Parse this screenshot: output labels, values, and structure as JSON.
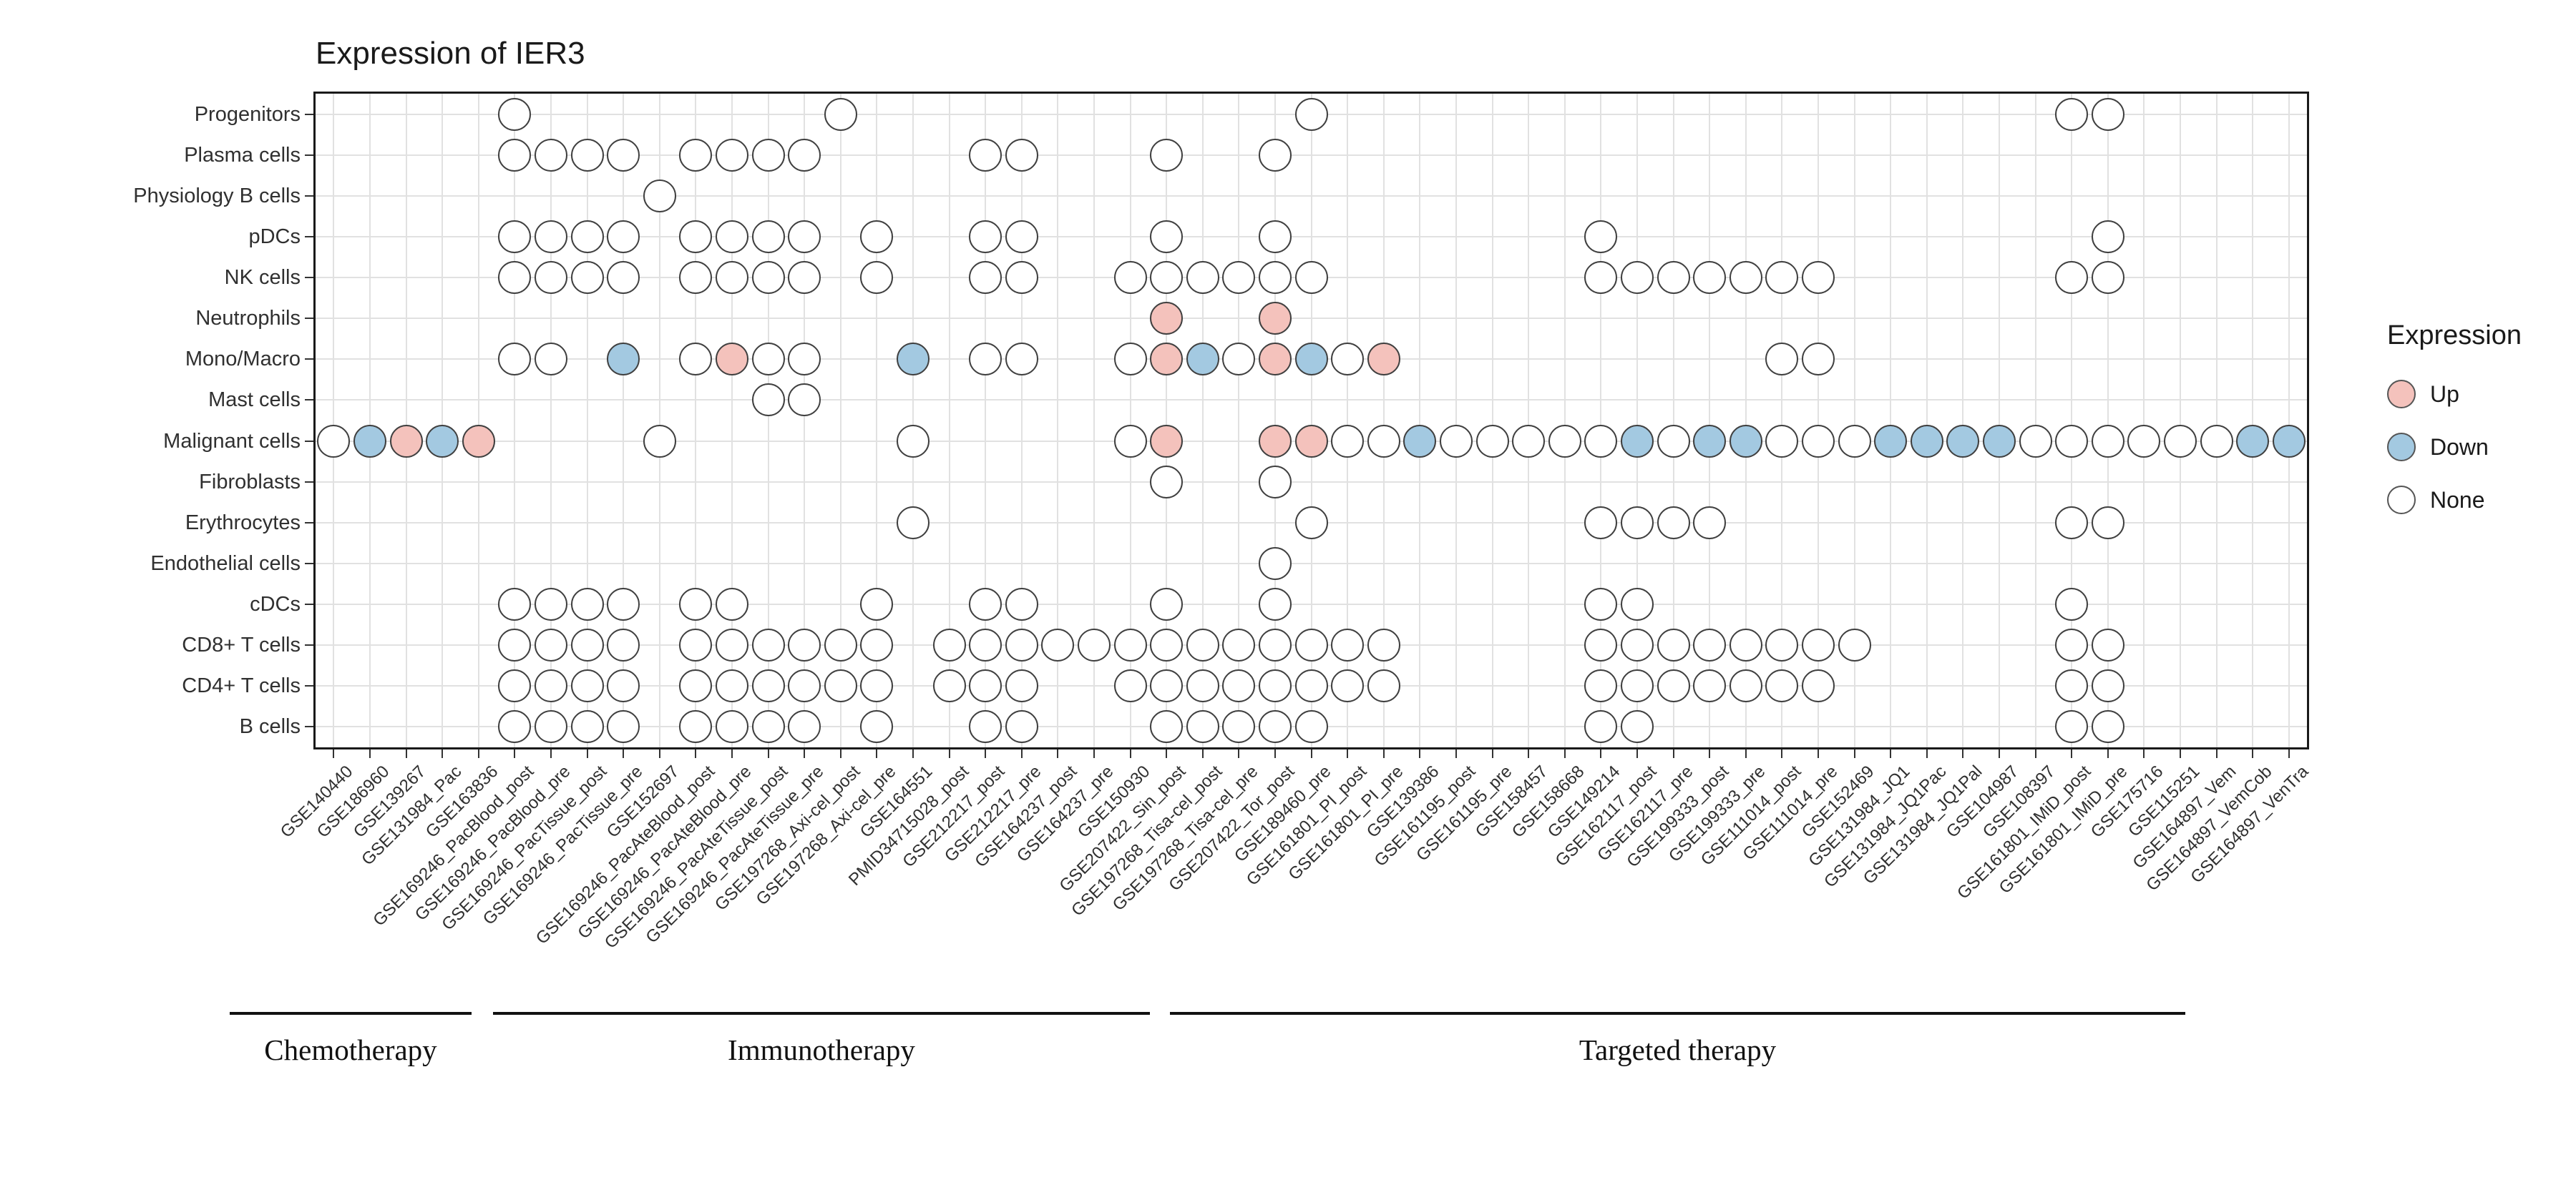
{
  "colors": {
    "up": "#F4C2BC",
    "down": "#A3C9E1",
    "none": "#FFFFFF",
    "dot_stroke": "#404040",
    "grid": "#E1E1E1",
    "axis": "#1A1A1A"
  },
  "chart_data": {
    "type": "heatmap",
    "title": "Expression of IER3",
    "xlabel": "",
    "ylabel": "",
    "grid": true,
    "legend_position": "right",
    "value_domain": [
      "up",
      "down",
      "none"
    ],
    "legend": {
      "title": "Expression",
      "items": [
        {
          "label": "Up",
          "state": "up"
        },
        {
          "label": "Down",
          "state": "down"
        },
        {
          "label": "None",
          "state": "none"
        }
      ]
    },
    "rows": [
      "Progenitors",
      "Plasma cells",
      "Physiology B cells",
      "pDCs",
      "NK cells",
      "Neutrophils",
      "Mono/Macro",
      "Mast cells",
      "Malignant cells",
      "Fibroblasts",
      "Erythrocytes",
      "Endothelial cells",
      "cDCs",
      "CD8+ T cells",
      "CD4+ T cells",
      "B cells"
    ],
    "columns": [
      "GSE140440",
      "GSE186960",
      "GSE139267",
      "GSE131984_Pac",
      "GSE163836",
      "GSE169246_PacBlood_post",
      "GSE169246_PacBlood_pre",
      "GSE169246_PacTissue_post",
      "GSE169246_PacTissue_pre",
      "GSE152697",
      "GSE169246_PacAteBlood_post",
      "GSE169246_PacAteBlood_pre",
      "GSE169246_PacAteTissue_post",
      "GSE169246_PacAteTissue_pre",
      "GSE197268_Axi-cel_post",
      "GSE197268_Axi-cel_pre",
      "GSE164551",
      "PMID34715028_post",
      "GSE212217_post",
      "GSE212217_pre",
      "GSE164237_post",
      "GSE164237_pre",
      "GSE150930",
      "GSE207422_Sin_post",
      "GSE197268_Tisa-cel_post",
      "GSE197268_Tisa-cel_pre",
      "GSE207422_Tor_post",
      "GSE189460_pre",
      "GSE161801_PI_post",
      "GSE161801_PI_pre",
      "GSE139386",
      "GSE161195_post",
      "GSE161195_pre",
      "GSE158457",
      "GSE158668",
      "GSE149214",
      "GSE162117_post",
      "GSE162117_pre",
      "GSE199333_post",
      "GSE199333_pre",
      "GSE111014_post",
      "GSE111014_pre",
      "GSE152469",
      "GSE131984_JQ1",
      "GSE131984_JQ1Pac",
      "GSE131984_JQ1Pal",
      "GSE104987",
      "GSE108397",
      "GSE161801_IMiD_post",
      "GSE161801_IMiD_pre",
      "GSE175716",
      "GSE115251",
      "GSE164897_Vem",
      "GSE164897_VemCob",
      "GSE164897_VenTra"
    ],
    "column_groups": [
      {
        "label": "Chemotherapy",
        "first_col": 1,
        "last_col": 5
      },
      {
        "label": "Immunotherapy",
        "first_col": 6,
        "last_col": 27
      },
      {
        "label": "Targeted therapy",
        "first_col": 28,
        "last_col": 55
      }
    ],
    "dots": [
      {
        "cell_type": "Progenitors",
        "points": [
          [
            6,
            "none"
          ],
          [
            15,
            "none"
          ],
          [
            28,
            "none"
          ],
          [
            49,
            "none"
          ],
          [
            50,
            "none"
          ]
        ]
      },
      {
        "cell_type": "Plasma cells",
        "points": [
          [
            6,
            "none"
          ],
          [
            7,
            "none"
          ],
          [
            8,
            "none"
          ],
          [
            9,
            "none"
          ],
          [
            11,
            "none"
          ],
          [
            12,
            "none"
          ],
          [
            13,
            "none"
          ],
          [
            14,
            "none"
          ],
          [
            19,
            "none"
          ],
          [
            20,
            "none"
          ],
          [
            24,
            "none"
          ],
          [
            27,
            "none"
          ]
        ]
      },
      {
        "cell_type": "Physiology B cells",
        "points": [
          [
            10,
            "none"
          ]
        ]
      },
      {
        "cell_type": "pDCs",
        "points": [
          [
            6,
            "none"
          ],
          [
            7,
            "none"
          ],
          [
            8,
            "none"
          ],
          [
            9,
            "none"
          ],
          [
            11,
            "none"
          ],
          [
            12,
            "none"
          ],
          [
            13,
            "none"
          ],
          [
            14,
            "none"
          ],
          [
            16,
            "none"
          ],
          [
            19,
            "none"
          ],
          [
            20,
            "none"
          ],
          [
            24,
            "none"
          ],
          [
            27,
            "none"
          ],
          [
            36,
            "none"
          ],
          [
            50,
            "none"
          ]
        ]
      },
      {
        "cell_type": "NK cells",
        "points": [
          [
            6,
            "none"
          ],
          [
            7,
            "none"
          ],
          [
            8,
            "none"
          ],
          [
            9,
            "none"
          ],
          [
            11,
            "none"
          ],
          [
            12,
            "none"
          ],
          [
            13,
            "none"
          ],
          [
            14,
            "none"
          ],
          [
            16,
            "none"
          ],
          [
            19,
            "none"
          ],
          [
            20,
            "none"
          ],
          [
            23,
            "none"
          ],
          [
            24,
            "none"
          ],
          [
            25,
            "none"
          ],
          [
            26,
            "none"
          ],
          [
            27,
            "none"
          ],
          [
            28,
            "none"
          ],
          [
            36,
            "none"
          ],
          [
            37,
            "none"
          ],
          [
            38,
            "none"
          ],
          [
            39,
            "none"
          ],
          [
            40,
            "none"
          ],
          [
            41,
            "none"
          ],
          [
            42,
            "none"
          ],
          [
            49,
            "none"
          ],
          [
            50,
            "none"
          ]
        ]
      },
      {
        "cell_type": "Neutrophils",
        "points": [
          [
            24,
            "up"
          ],
          [
            27,
            "up"
          ]
        ]
      },
      {
        "cell_type": "Mono/Macro",
        "points": [
          [
            6,
            "none"
          ],
          [
            7,
            "none"
          ],
          [
            9,
            "down"
          ],
          [
            11,
            "none"
          ],
          [
            12,
            "up"
          ],
          [
            13,
            "none"
          ],
          [
            14,
            "none"
          ],
          [
            17,
            "down"
          ],
          [
            19,
            "none"
          ],
          [
            20,
            "none"
          ],
          [
            23,
            "none"
          ],
          [
            24,
            "up"
          ],
          [
            25,
            "down"
          ],
          [
            26,
            "none"
          ],
          [
            27,
            "up"
          ],
          [
            28,
            "down"
          ],
          [
            29,
            "none"
          ],
          [
            30,
            "up"
          ],
          [
            41,
            "none"
          ],
          [
            42,
            "none"
          ]
        ]
      },
      {
        "cell_type": "Mast cells",
        "points": [
          [
            13,
            "none"
          ],
          [
            14,
            "none"
          ]
        ]
      },
      {
        "cell_type": "Malignant cells",
        "points": [
          [
            1,
            "none"
          ],
          [
            2,
            "down"
          ],
          [
            3,
            "up"
          ],
          [
            4,
            "down"
          ],
          [
            5,
            "up"
          ],
          [
            10,
            "none"
          ],
          [
            17,
            "none"
          ],
          [
            23,
            "none"
          ],
          [
            24,
            "up"
          ],
          [
            27,
            "up"
          ],
          [
            28,
            "up"
          ],
          [
            29,
            "none"
          ],
          [
            30,
            "none"
          ],
          [
            31,
            "down"
          ],
          [
            32,
            "none"
          ],
          [
            33,
            "none"
          ],
          [
            34,
            "none"
          ],
          [
            35,
            "none"
          ],
          [
            36,
            "none"
          ],
          [
            37,
            "down"
          ],
          [
            38,
            "none"
          ],
          [
            39,
            "down"
          ],
          [
            40,
            "down"
          ],
          [
            41,
            "none"
          ],
          [
            42,
            "none"
          ],
          [
            43,
            "none"
          ],
          [
            44,
            "down"
          ],
          [
            45,
            "down"
          ],
          [
            46,
            "down"
          ],
          [
            47,
            "down"
          ],
          [
            48,
            "none"
          ],
          [
            49,
            "none"
          ],
          [
            50,
            "none"
          ],
          [
            51,
            "none"
          ],
          [
            52,
            "none"
          ],
          [
            53,
            "none"
          ],
          [
            54,
            "down"
          ],
          [
            55,
            "down"
          ]
        ]
      },
      {
        "cell_type": "Fibroblasts",
        "points": [
          [
            24,
            "none"
          ],
          [
            27,
            "none"
          ]
        ]
      },
      {
        "cell_type": "Erythrocytes",
        "points": [
          [
            17,
            "none"
          ],
          [
            28,
            "none"
          ],
          [
            36,
            "none"
          ],
          [
            37,
            "none"
          ],
          [
            38,
            "none"
          ],
          [
            39,
            "none"
          ],
          [
            49,
            "none"
          ],
          [
            50,
            "none"
          ]
        ]
      },
      {
        "cell_type": "Endothelial cells",
        "points": [
          [
            27,
            "none"
          ]
        ]
      },
      {
        "cell_type": "cDCs",
        "points": [
          [
            6,
            "none"
          ],
          [
            7,
            "none"
          ],
          [
            8,
            "none"
          ],
          [
            9,
            "none"
          ],
          [
            11,
            "none"
          ],
          [
            12,
            "none"
          ],
          [
            16,
            "none"
          ],
          [
            19,
            "none"
          ],
          [
            20,
            "none"
          ],
          [
            24,
            "none"
          ],
          [
            27,
            "none"
          ],
          [
            36,
            "none"
          ],
          [
            37,
            "none"
          ],
          [
            49,
            "none"
          ]
        ]
      },
      {
        "cell_type": "CD8+ T cells",
        "points": [
          [
            6,
            "none"
          ],
          [
            7,
            "none"
          ],
          [
            8,
            "none"
          ],
          [
            9,
            "none"
          ],
          [
            11,
            "none"
          ],
          [
            12,
            "none"
          ],
          [
            13,
            "none"
          ],
          [
            14,
            "none"
          ],
          [
            15,
            "none"
          ],
          [
            16,
            "none"
          ],
          [
            18,
            "none"
          ],
          [
            19,
            "none"
          ],
          [
            20,
            "none"
          ],
          [
            21,
            "none"
          ],
          [
            22,
            "none"
          ],
          [
            23,
            "none"
          ],
          [
            24,
            "none"
          ],
          [
            25,
            "none"
          ],
          [
            26,
            "none"
          ],
          [
            27,
            "none"
          ],
          [
            28,
            "none"
          ],
          [
            29,
            "none"
          ],
          [
            30,
            "none"
          ],
          [
            36,
            "none"
          ],
          [
            37,
            "none"
          ],
          [
            38,
            "none"
          ],
          [
            39,
            "none"
          ],
          [
            40,
            "none"
          ],
          [
            41,
            "none"
          ],
          [
            42,
            "none"
          ],
          [
            43,
            "none"
          ],
          [
            49,
            "none"
          ],
          [
            50,
            "none"
          ]
        ]
      },
      {
        "cell_type": "CD4+ T cells",
        "points": [
          [
            6,
            "none"
          ],
          [
            7,
            "none"
          ],
          [
            8,
            "none"
          ],
          [
            9,
            "none"
          ],
          [
            11,
            "none"
          ],
          [
            12,
            "none"
          ],
          [
            13,
            "none"
          ],
          [
            14,
            "none"
          ],
          [
            15,
            "none"
          ],
          [
            16,
            "none"
          ],
          [
            18,
            "none"
          ],
          [
            19,
            "none"
          ],
          [
            20,
            "none"
          ],
          [
            23,
            "none"
          ],
          [
            24,
            "none"
          ],
          [
            25,
            "none"
          ],
          [
            26,
            "none"
          ],
          [
            27,
            "none"
          ],
          [
            28,
            "none"
          ],
          [
            29,
            "none"
          ],
          [
            30,
            "none"
          ],
          [
            36,
            "none"
          ],
          [
            37,
            "none"
          ],
          [
            38,
            "none"
          ],
          [
            39,
            "none"
          ],
          [
            40,
            "none"
          ],
          [
            41,
            "none"
          ],
          [
            42,
            "none"
          ],
          [
            49,
            "none"
          ],
          [
            50,
            "none"
          ]
        ]
      },
      {
        "cell_type": "B cells",
        "points": [
          [
            6,
            "none"
          ],
          [
            7,
            "none"
          ],
          [
            8,
            "none"
          ],
          [
            9,
            "none"
          ],
          [
            11,
            "none"
          ],
          [
            12,
            "none"
          ],
          [
            13,
            "none"
          ],
          [
            14,
            "none"
          ],
          [
            16,
            "none"
          ],
          [
            19,
            "none"
          ],
          [
            20,
            "none"
          ],
          [
            24,
            "none"
          ],
          [
            25,
            "none"
          ],
          [
            26,
            "none"
          ],
          [
            27,
            "none"
          ],
          [
            28,
            "none"
          ],
          [
            36,
            "none"
          ],
          [
            37,
            "none"
          ],
          [
            49,
            "none"
          ],
          [
            50,
            "none"
          ]
        ]
      }
    ]
  }
}
